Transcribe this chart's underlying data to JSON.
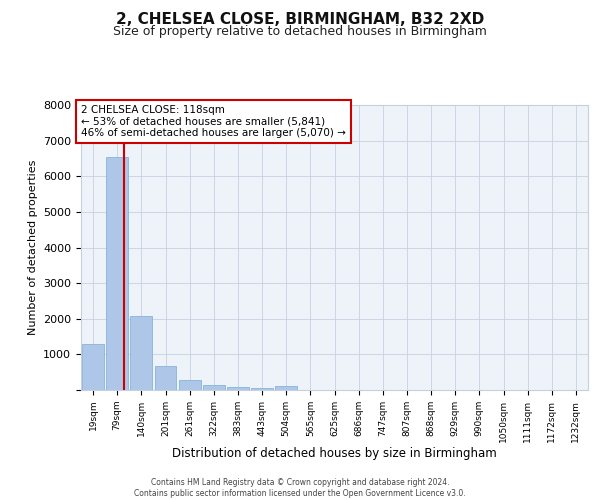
{
  "title": "2, CHELSEA CLOSE, BIRMINGHAM, B32 2XD",
  "subtitle": "Size of property relative to detached houses in Birmingham",
  "xlabel": "Distribution of detached houses by size in Birmingham",
  "ylabel": "Number of detached properties",
  "categories": [
    "19sqm",
    "79sqm",
    "140sqm",
    "201sqm",
    "261sqm",
    "322sqm",
    "383sqm",
    "443sqm",
    "504sqm",
    "565sqm",
    "625sqm",
    "686sqm",
    "747sqm",
    "807sqm",
    "868sqm",
    "929sqm",
    "990sqm",
    "1050sqm",
    "1111sqm",
    "1172sqm",
    "1232sqm"
  ],
  "values": [
    1300,
    6550,
    2080,
    680,
    290,
    130,
    80,
    60,
    100,
    0,
    0,
    0,
    0,
    0,
    0,
    0,
    0,
    0,
    0,
    0,
    0
  ],
  "bar_color": "#aec6e8",
  "bar_edge_color": "#7aadd4",
  "red_line_x": 1.3,
  "annotation_title": "2 CHELSEA CLOSE: 118sqm",
  "annotation_line1": "← 53% of detached houses are smaller (5,841)",
  "annotation_line2": "46% of semi-detached houses are larger (5,070) →",
  "annotation_box_color": "#cc0000",
  "ylim": [
    0,
    8000
  ],
  "yticks": [
    0,
    1000,
    2000,
    3000,
    4000,
    5000,
    6000,
    7000,
    8000
  ],
  "footer_line1": "Contains HM Land Registry data © Crown copyright and database right 2024.",
  "footer_line2": "Contains public sector information licensed under the Open Government Licence v3.0.",
  "bg_color": "#eef2f9",
  "grid_color": "#c8d0e0"
}
